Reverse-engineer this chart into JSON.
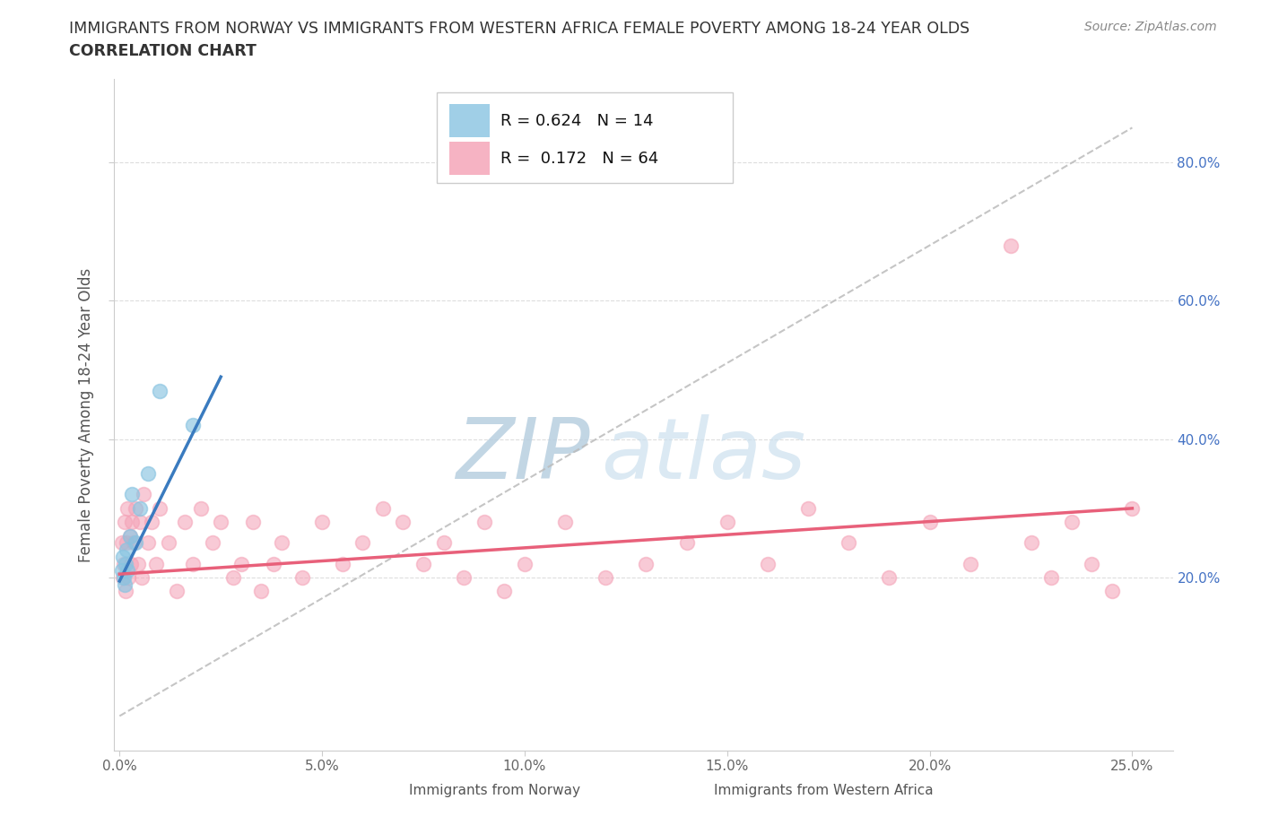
{
  "title_line1": "IMMIGRANTS FROM NORWAY VS IMMIGRANTS FROM WESTERN AFRICA FEMALE POVERTY AMONG 18-24 YEAR OLDS",
  "title_line2": "CORRELATION CHART",
  "source_text": "Source: ZipAtlas.com",
  "ylabel": "Female Poverty Among 18-24 Year Olds",
  "norway_R": 0.624,
  "norway_N": 14,
  "africa_R": 0.172,
  "africa_N": 64,
  "norway_color": "#89c4e1",
  "africa_color": "#f4a0b5",
  "norway_line_color": "#3a7bbf",
  "africa_line_color": "#e8607a",
  "ref_line_color": "#bbbbbb",
  "background_color": "#ffffff",
  "watermark": "ZIPatlas",
  "watermark_color": "#ccdded",
  "right_tick_color": "#4472c4",
  "xlim": [
    -0.15,
    26.0
  ],
  "ylim": [
    -5,
    92
  ],
  "xticks": [
    0,
    5,
    10,
    15,
    20,
    25
  ],
  "yticks": [
    20,
    40,
    60,
    80
  ],
  "norway_x": [
    0.05,
    0.08,
    0.1,
    0.12,
    0.15,
    0.18,
    0.2,
    0.25,
    0.3,
    0.4,
    0.5,
    0.7,
    1.0,
    1.8
  ],
  "norway_y": [
    21,
    23,
    20,
    19,
    22,
    24,
    21,
    26,
    32,
    25,
    30,
    35,
    47,
    42
  ],
  "africa_x": [
    0.05,
    0.08,
    0.1,
    0.12,
    0.15,
    0.18,
    0.2,
    0.22,
    0.25,
    0.28,
    0.3,
    0.35,
    0.4,
    0.45,
    0.5,
    0.55,
    0.6,
    0.7,
    0.8,
    0.9,
    1.0,
    1.2,
    1.4,
    1.6,
    1.8,
    2.0,
    2.3,
    2.5,
    2.8,
    3.0,
    3.3,
    3.5,
    3.8,
    4.0,
    4.5,
    5.0,
    5.5,
    6.0,
    6.5,
    7.0,
    7.5,
    8.0,
    8.5,
    9.0,
    9.5,
    10.0,
    11.0,
    12.0,
    13.0,
    14.0,
    15.0,
    16.0,
    17.0,
    18.0,
    19.0,
    20.0,
    21.0,
    22.0,
    22.5,
    23.0,
    23.5,
    24.0,
    24.5,
    25.0
  ],
  "africa_y": [
    25,
    20,
    22,
    28,
    18,
    25,
    30,
    20,
    26,
    22,
    28,
    25,
    30,
    22,
    28,
    20,
    32,
    25,
    28,
    22,
    30,
    25,
    18,
    28,
    22,
    30,
    25,
    28,
    20,
    22,
    28,
    18,
    22,
    25,
    20,
    28,
    22,
    25,
    30,
    28,
    22,
    25,
    20,
    28,
    18,
    22,
    28,
    20,
    22,
    25,
    28,
    22,
    30,
    25,
    20,
    28,
    22,
    68,
    25,
    20,
    28,
    22,
    18,
    30
  ],
  "norway_line_x": [
    0.0,
    2.5
  ],
  "norway_line_y": [
    19.5,
    49.0
  ],
  "africa_line_x": [
    0.0,
    25.0
  ],
  "africa_line_y": [
    20.5,
    30.0
  ],
  "ref_line_x": [
    0,
    25
  ],
  "ref_line_y": [
    0,
    85
  ]
}
